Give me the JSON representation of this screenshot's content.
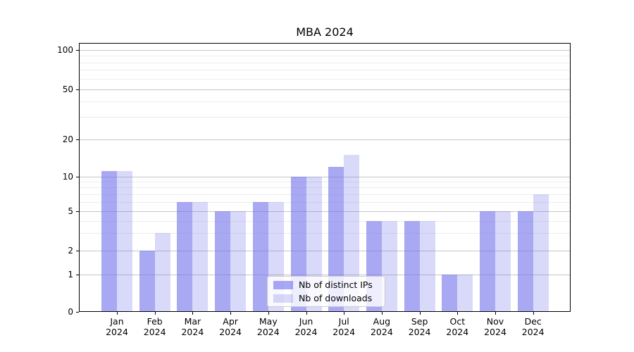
{
  "title": "MBA 2024",
  "chart_data": {
    "type": "bar",
    "title": "MBA 2024",
    "x_months": [
      "Jan",
      "Feb",
      "Mar",
      "Apr",
      "May",
      "Jun",
      "Jul",
      "Aug",
      "Sep",
      "Oct",
      "Nov",
      "Dec"
    ],
    "x_year": "2024",
    "series": [
      {
        "name": "Nb of distinct IPs",
        "color": "rgba(110,110,235,0.6)",
        "values": [
          11,
          2,
          6,
          5,
          6,
          10,
          12,
          4,
          4,
          1,
          5,
          5
        ]
      },
      {
        "name": "Nb of downloads",
        "color": "rgba(110,110,235,0.26)",
        "values": [
          11,
          3,
          6,
          5,
          6,
          10,
          15,
          4,
          4,
          1,
          5,
          7
        ]
      }
    ],
    "yscale": "log-with-zero-baseline",
    "ylim": [
      0,
      112
    ],
    "yticks_major": [
      0,
      1,
      2,
      5,
      10,
      20,
      50,
      100
    ],
    "yticks_minor": [
      3,
      4,
      6,
      7,
      8,
      9,
      30,
      40,
      60,
      70,
      80,
      90
    ],
    "grid": "on",
    "legend_position": "lower center",
    "colors": {
      "axis": "#000000",
      "grid_major": "#c6c6c6",
      "grid_minor": "#ededed"
    }
  }
}
